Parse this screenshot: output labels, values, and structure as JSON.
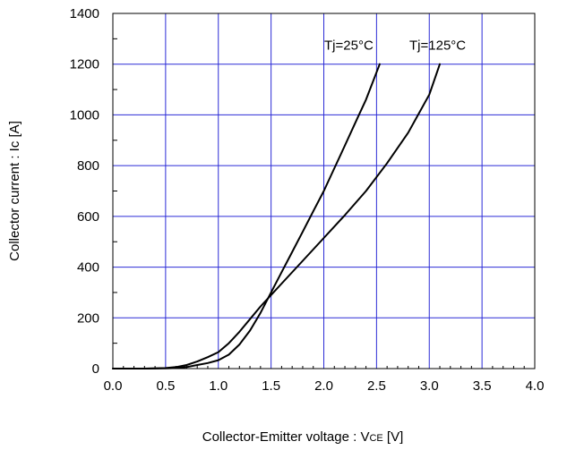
{
  "chart_data": {
    "type": "line",
    "xlabel": "Collector-Emitter voltage : V",
    "xlabel_sub": "CE",
    "xlabel_unit": " [V]",
    "ylabel": "Collector current : Ic [A]",
    "xlim": [
      0.0,
      4.0
    ],
    "ylim": [
      0,
      1400
    ],
    "x_ticks": [
      "0.0",
      "0.5",
      "1.0",
      "1.5",
      "2.0",
      "2.5",
      "3.0",
      "3.5",
      "4.0"
    ],
    "y_ticks": [
      "0",
      "200",
      "400",
      "600",
      "800",
      "1000",
      "1200",
      "1400"
    ],
    "grid": true,
    "grid_color": "#2b2bd6",
    "line_color": "#000000",
    "series": [
      {
        "name": "Tj=25°C",
        "x": [
          0.0,
          0.3,
          0.5,
          0.6,
          0.7,
          0.8,
          0.9,
          1.0,
          1.1,
          1.2,
          1.3,
          1.4,
          1.5,
          1.6,
          1.7,
          1.8,
          1.9,
          2.0,
          2.1,
          2.2,
          2.3,
          2.4,
          2.53
        ],
        "y": [
          0,
          0,
          1,
          2,
          6,
          14,
          22,
          33,
          55,
          95,
          150,
          220,
          300,
          380,
          460,
          540,
          620,
          700,
          790,
          880,
          970,
          1060,
          1200
        ]
      },
      {
        "name": "Tj=125°C",
        "x": [
          0.0,
          0.3,
          0.5,
          0.6,
          0.7,
          0.8,
          0.9,
          1.0,
          1.1,
          1.2,
          1.3,
          1.4,
          1.5,
          1.6,
          1.8,
          2.0,
          2.2,
          2.4,
          2.6,
          2.8,
          3.0,
          3.1
        ],
        "y": [
          0,
          0,
          2,
          6,
          14,
          28,
          45,
          65,
          100,
          145,
          195,
          245,
          290,
          335,
          425,
          515,
          605,
          700,
          810,
          930,
          1080,
          1200
        ]
      }
    ]
  }
}
